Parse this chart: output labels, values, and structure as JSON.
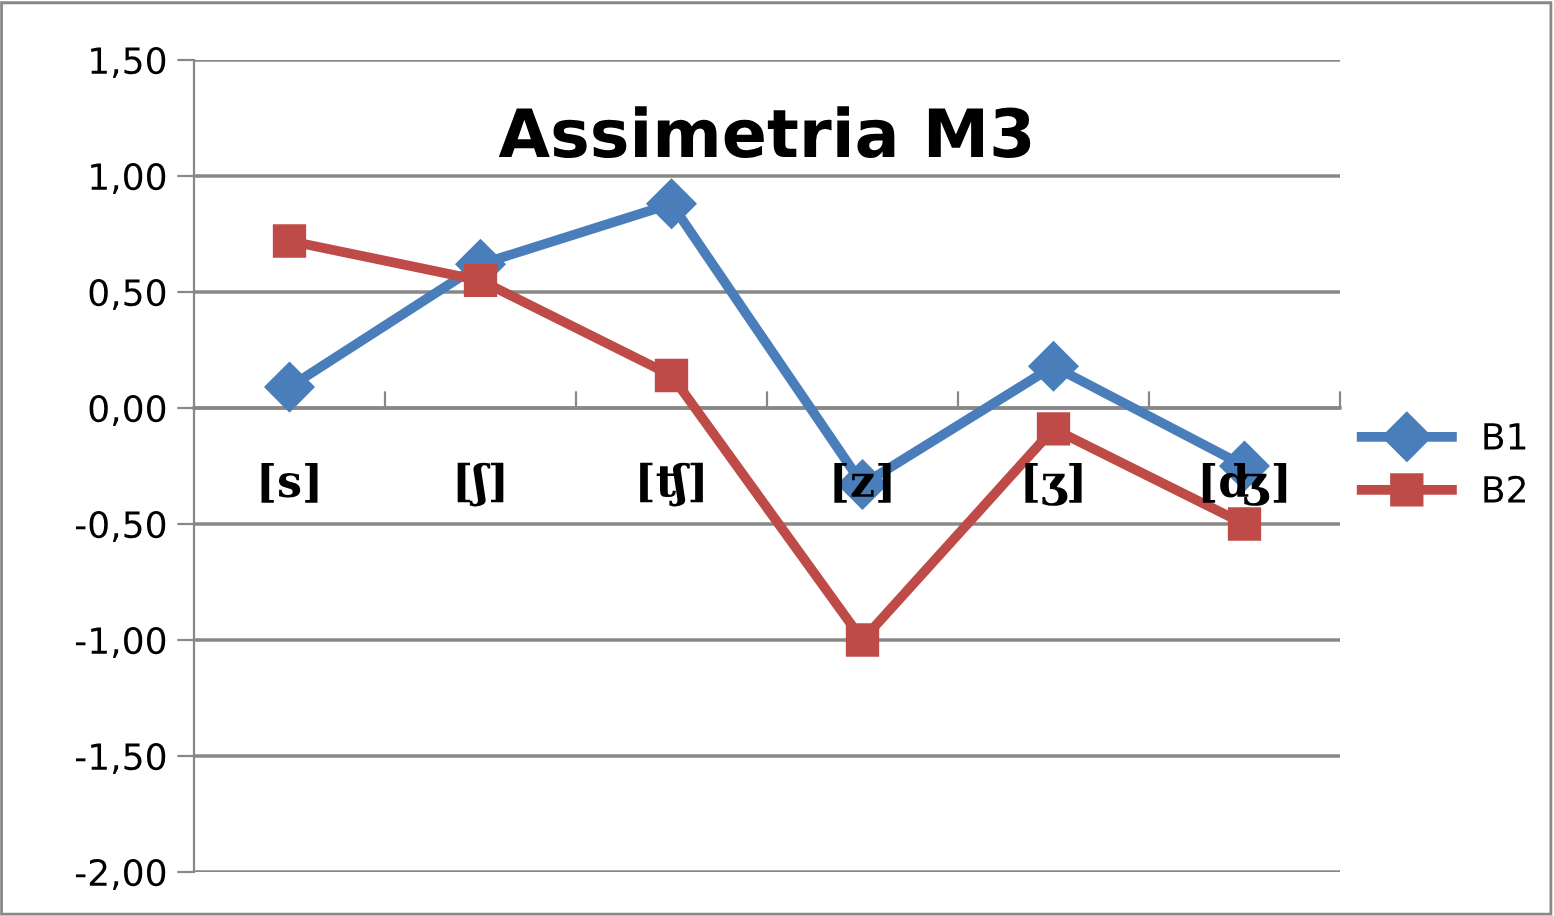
{
  "chart_data": {
    "type": "line",
    "title": "Assimetria M3",
    "categories": [
      "[s]",
      "[ʃ]",
      "[ʧ]",
      "[z]",
      "[ʒ]",
      "[ʤ]"
    ],
    "series": [
      {
        "name": "B1",
        "color": "#4a7ebb",
        "marker": "diamond",
        "values": [
          0.09,
          0.62,
          0.88,
          -0.33,
          0.18,
          -0.25
        ]
      },
      {
        "name": "B2",
        "color": "#be4b48",
        "marker": "square",
        "values": [
          0.72,
          0.55,
          0.14,
          -1.0,
          -0.09,
          -0.5
        ]
      }
    ],
    "ylim": [
      -2.0,
      1.5
    ],
    "yticks": [
      {
        "value": -2.0,
        "label": "-2,00"
      },
      {
        "value": -1.5,
        "label": "-1,50"
      },
      {
        "value": -1.0,
        "label": "-1,00"
      },
      {
        "value": -0.5,
        "label": "-0,50"
      },
      {
        "value": 0.0,
        "label": "0,00"
      },
      {
        "value": 0.5,
        "label": "0,50"
      },
      {
        "value": 1.0,
        "label": "1,00"
      },
      {
        "value": 1.5,
        "label": "1,50"
      }
    ],
    "grid": "y",
    "legend": "right",
    "line_style": "solid"
  }
}
